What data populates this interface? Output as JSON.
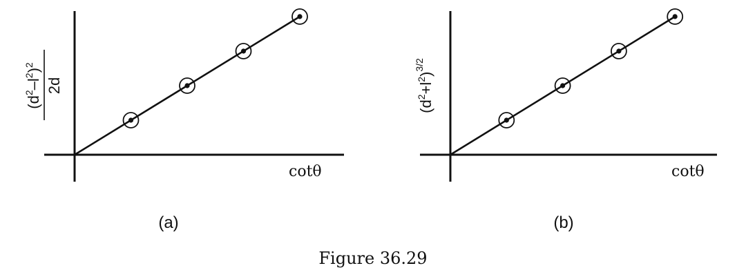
{
  "figure_caption": "Figure 36.29",
  "chart_data": [
    {
      "type": "line",
      "panel_label": "(a)",
      "xlabel": "cotθ",
      "ylabel": {
        "numerator": "(d",
        "sup1": "2",
        "mid": "–l",
        "sup2": "2",
        "close": ")",
        "sup3": "2",
        "denominator": "2d"
      },
      "xlim": [
        0,
        5
      ],
      "ylim": [
        0,
        5
      ],
      "points": [
        {
          "x": 1,
          "y": 1
        },
        {
          "x": 2,
          "y": 2
        },
        {
          "x": 3,
          "y": 3
        },
        {
          "x": 4,
          "y": 4
        }
      ],
      "fit_line": {
        "from": [
          0,
          0
        ],
        "to": [
          4,
          4
        ]
      }
    },
    {
      "type": "line",
      "panel_label": "(b)",
      "xlabel": "cotθ",
      "ylabel": {
        "open": "(d",
        "sup1": "2",
        "mid": "+l",
        "sup2": "2",
        "close": ")",
        "sup3": "3/2"
      },
      "xlim": [
        0,
        5
      ],
      "ylim": [
        0,
        5
      ],
      "points": [
        {
          "x": 1,
          "y": 1
        },
        {
          "x": 2,
          "y": 2
        },
        {
          "x": 3,
          "y": 3
        },
        {
          "x": 4,
          "y": 4
        }
      ],
      "fit_line": {
        "from": [
          0,
          0
        ],
        "to": [
          4,
          4
        ]
      }
    }
  ]
}
